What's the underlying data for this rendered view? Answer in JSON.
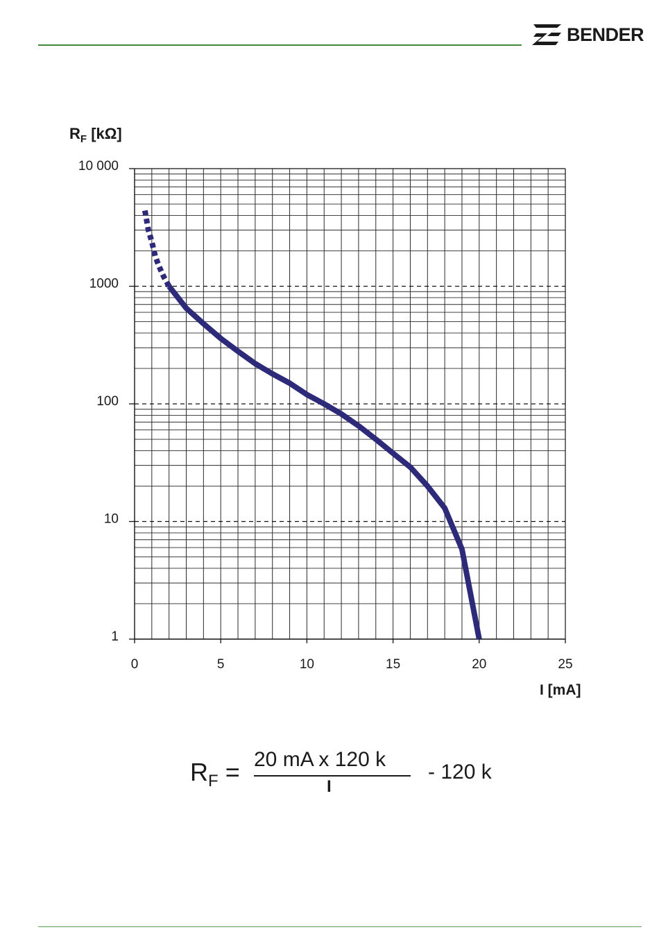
{
  "header": {
    "brand_name": "BENDER",
    "brand_logo_icon": "bender-logo-icon",
    "rule_color": "#3f8a3c"
  },
  "chart_data": {
    "type": "line",
    "title": "",
    "ylabel": "R",
    "ylabel_sub": "F",
    "ylabel_unit": "[kΩ]",
    "xlabel": "I [mA]",
    "x_ticks": [
      "0",
      "5",
      "10",
      "15",
      "20",
      "25"
    ],
    "x_tick_values": [
      0,
      5,
      10,
      15,
      20,
      25
    ],
    "y_ticks": [
      "1",
      "10",
      "100",
      "1000",
      "10 000"
    ],
    "y_tick_values": [
      1,
      10,
      100,
      1000,
      10000
    ],
    "xlim": [
      0,
      25
    ],
    "ylim": [
      1,
      10000
    ],
    "y_scale": "log",
    "grid": true,
    "line_color": "#2e2a7a",
    "series": [
      {
        "style": "dashed",
        "x": [
          0.6,
          0.8,
          1.0,
          1.2,
          1.4,
          1.7,
          2.0
        ],
        "y": [
          4400,
          3000,
          2400,
          1800,
          1500,
          1200,
          1000
        ]
      },
      {
        "style": "solid",
        "x": [
          2.0,
          3.0,
          4.0,
          5.0,
          6.0,
          7.0,
          8.0,
          9.0,
          10.0,
          11.0,
          12.0,
          13.0,
          14.0,
          15.0,
          16.0,
          17.0,
          18.0,
          19.0,
          20.0
        ],
        "y": [
          1000,
          650,
          480,
          360,
          280,
          220,
          180,
          150,
          120,
          100,
          82,
          65,
          50,
          38,
          29,
          20,
          13,
          5.8,
          1
        ]
      }
    ]
  },
  "formula": {
    "lhs": "R",
    "lhs_sub": "F",
    "equals": "=",
    "numerator": "20 mA x 120 k",
    "denominator": "I",
    "rhs": "- 120 k"
  },
  "footer": {
    "rule_color": "#5a9c55"
  }
}
